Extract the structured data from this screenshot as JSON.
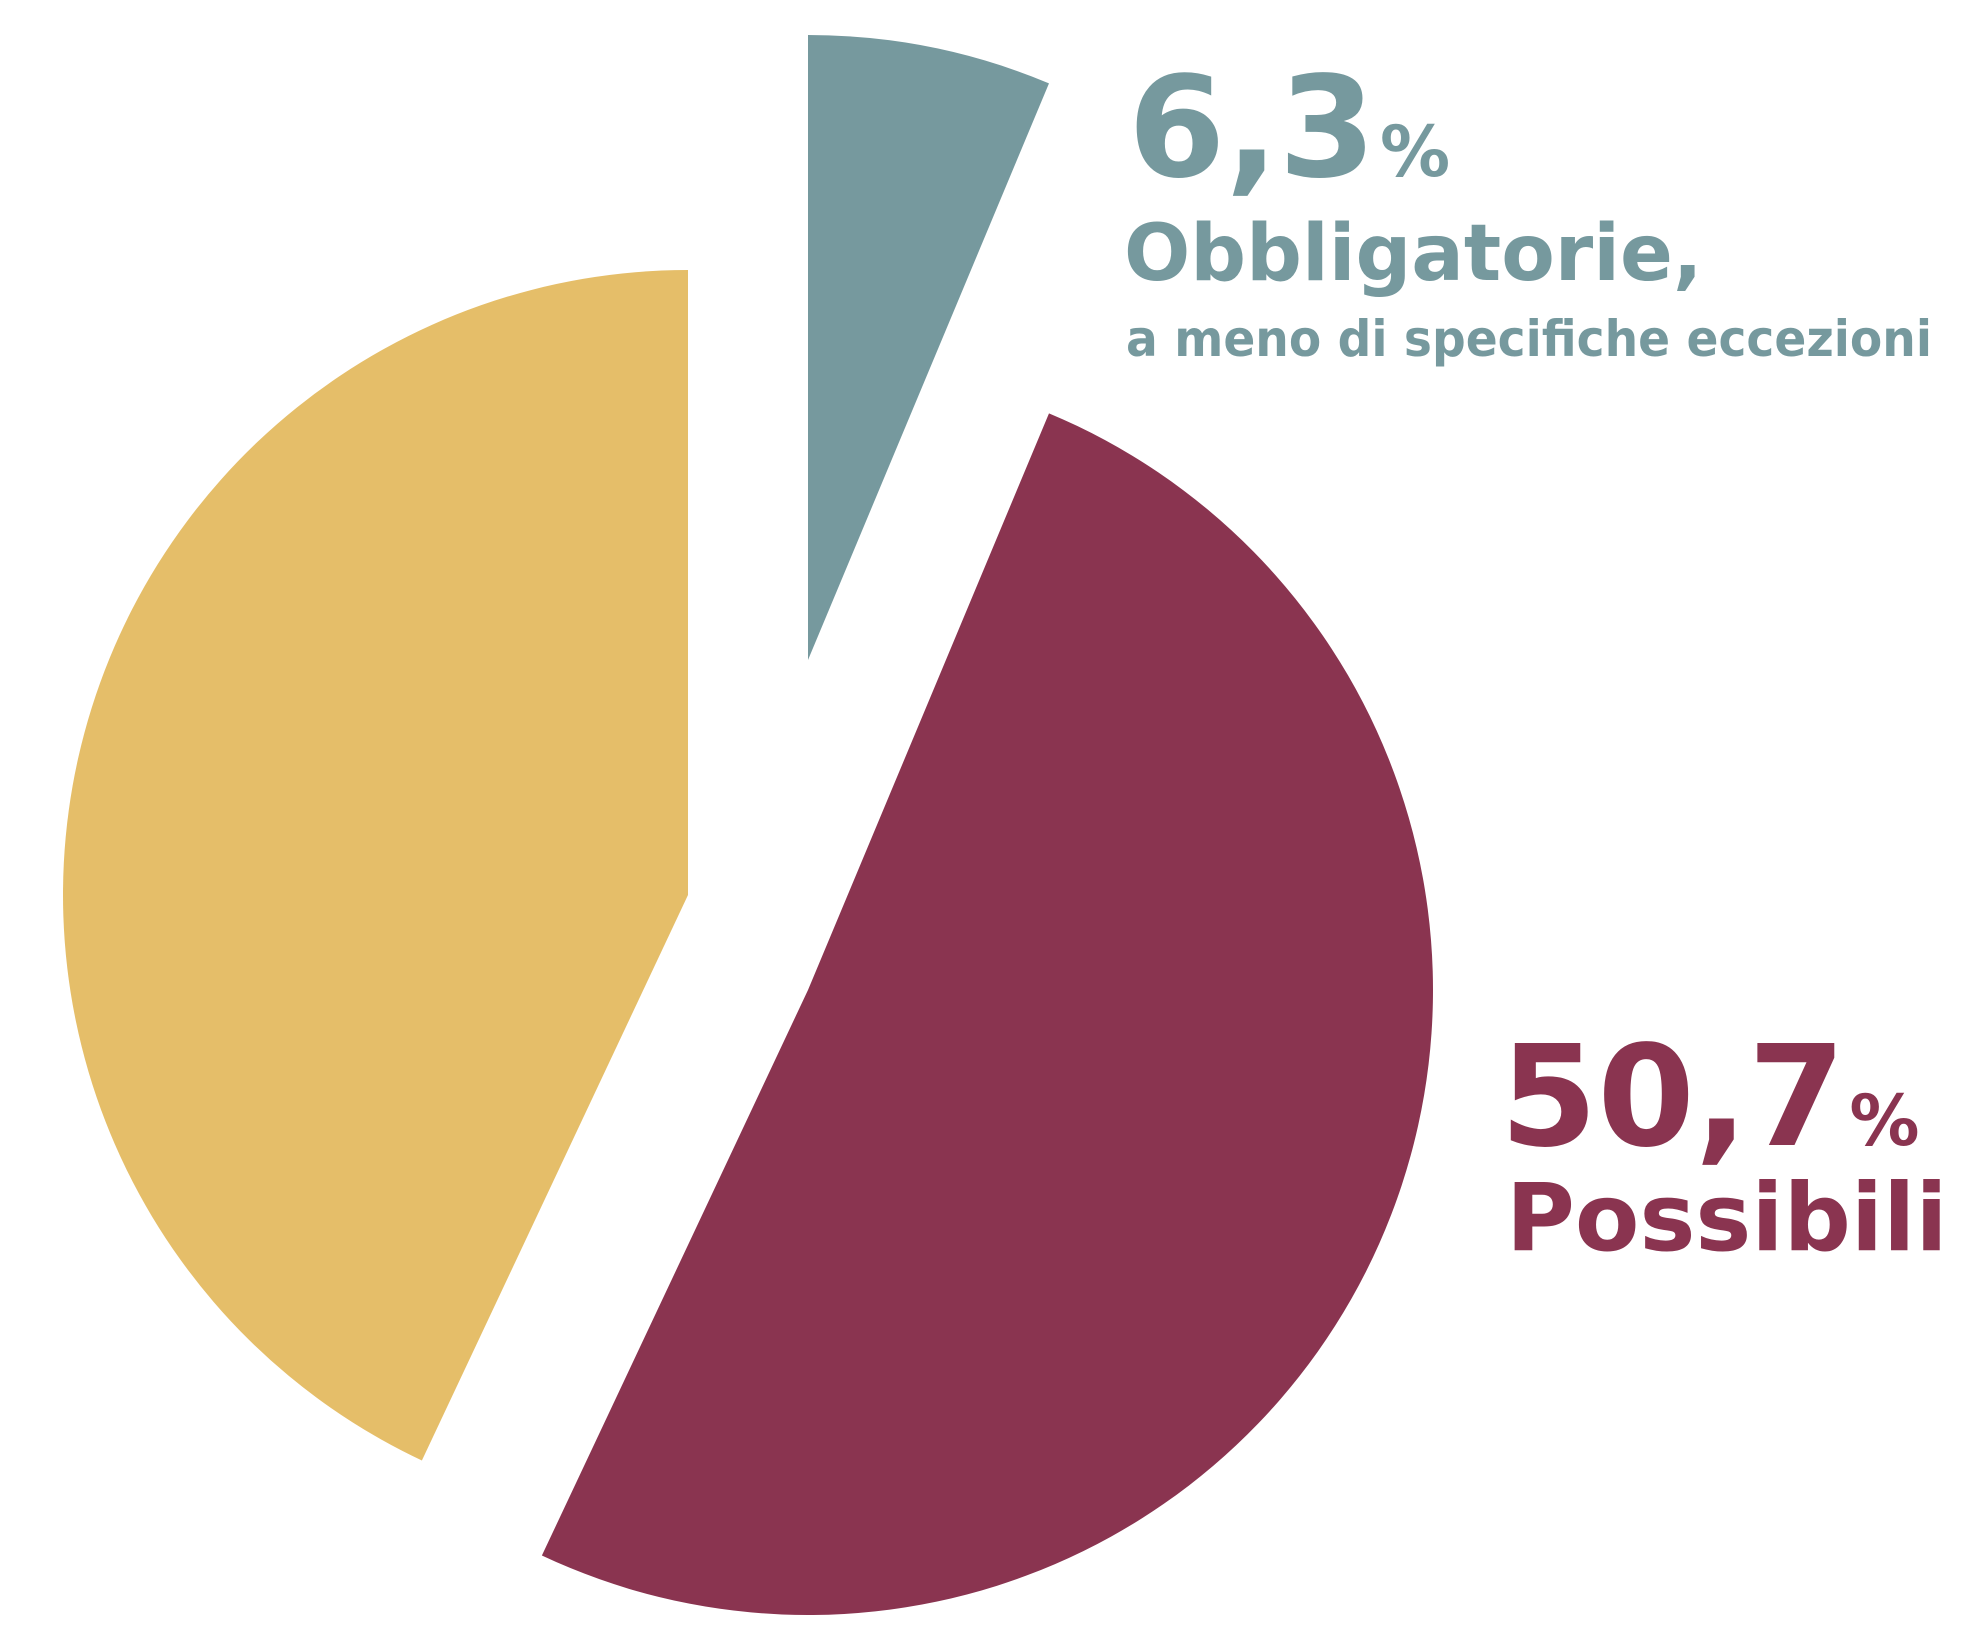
{
  "chart_data": {
    "type": "pie",
    "title": "",
    "slices": [
      {
        "value": 6.3,
        "display_value": "6,3",
        "unit": "%",
        "label": "Obbligatorie,",
        "sublabel": "a meno di specifiche eccezioni",
        "color": "#76999e",
        "exploded": true
      },
      {
        "value": 50.7,
        "display_value": "50,7",
        "unit": "%",
        "label": "Possibili",
        "sublabel": "",
        "color": "#8a3450",
        "exploded": true
      },
      {
        "value": 43.0,
        "display_value": "",
        "unit": "",
        "label": "",
        "sublabel": "",
        "color": "#e5be69",
        "exploded": true
      }
    ],
    "start_angle": "12 o'clock, clockwise",
    "legend": "none",
    "grid": false
  }
}
